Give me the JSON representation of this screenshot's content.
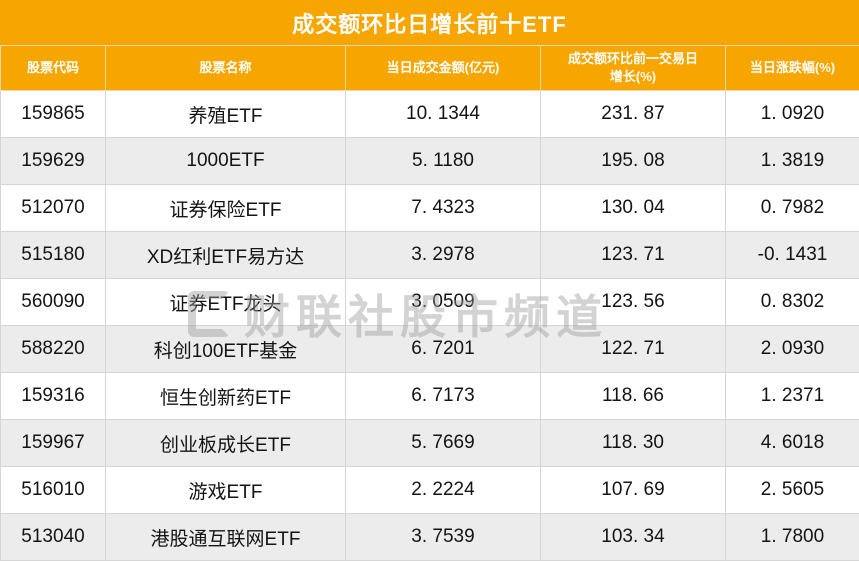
{
  "title": "成交额环比日增长前十ETF",
  "watermark": {
    "text": "财联社股市频道"
  },
  "colors": {
    "header_bg": "#F7A500",
    "header_text": "#FFFFFF",
    "row_alt_bg": "#ECECEC",
    "grid_line": "#D5D5D5",
    "watermark_gray": "#9E9E9E"
  },
  "table": {
    "headers": [
      "股票代码",
      "股票名称",
      "当日成交金额(亿元)",
      "成交额环比前一交易日增长(%)",
      "当日涨跌幅(%)"
    ],
    "rows": [
      [
        "159865",
        "养殖ETF",
        "10. 1344",
        "231. 87",
        "1. 0920"
      ],
      [
        "159629",
        "1000ETF",
        "5. 1180",
        "195. 08",
        "1. 3819"
      ],
      [
        "512070",
        "证券保险ETF",
        "7. 4323",
        "130. 04",
        "0. 7982"
      ],
      [
        "515180",
        "XD红利ETF易方达",
        "3. 2978",
        "123. 71",
        "-0. 1431"
      ],
      [
        "560090",
        "证券ETF龙头",
        "3. 0509",
        "123. 56",
        "0. 8302"
      ],
      [
        "588220",
        "科创100ETF基金",
        "6. 7201",
        "122. 71",
        "2. 0930"
      ],
      [
        "159316",
        "恒生创新药ETF",
        "6. 7173",
        "118. 66",
        "1. 2371"
      ],
      [
        "159967",
        "创业板成长ETF",
        "5. 7669",
        "118. 30",
        "4. 6018"
      ],
      [
        "516010",
        "游戏ETF",
        "2. 2224",
        "107. 69",
        "2. 5605"
      ],
      [
        "513040",
        "港股通互联网ETF",
        "3. 7539",
        "103. 34",
        "1. 7800"
      ]
    ]
  },
  "chart_data": {
    "type": "table",
    "title": "成交额环比日增长前十ETF",
    "columns": [
      "股票代码",
      "股票名称",
      "当日成交金额(亿元)",
      "成交额环比前一交易日增长(%)",
      "当日涨跌幅(%)"
    ],
    "rows": [
      [
        "159865",
        "养殖ETF",
        10.1344,
        231.87,
        1.092
      ],
      [
        "159629",
        "1000ETF",
        5.118,
        195.08,
        1.3819
      ],
      [
        "512070",
        "证券保险ETF",
        7.4323,
        130.04,
        0.7982
      ],
      [
        "515180",
        "XD红利ETF易方达",
        3.2978,
        123.71,
        -0.1431
      ],
      [
        "560090",
        "证券ETF龙头",
        3.0509,
        123.56,
        0.8302
      ],
      [
        "588220",
        "科创100ETF基金",
        6.7201,
        122.71,
        2.093
      ],
      [
        "159316",
        "恒生创新药ETF",
        6.7173,
        118.66,
        1.2371
      ],
      [
        "159967",
        "创业板成长ETF",
        5.7669,
        118.3,
        4.6018
      ],
      [
        "516010",
        "游戏ETF",
        2.2224,
        107.69,
        2.5605
      ],
      [
        "513040",
        "港股通互联网ETF",
        3.7539,
        103.34,
        1.78
      ]
    ]
  }
}
